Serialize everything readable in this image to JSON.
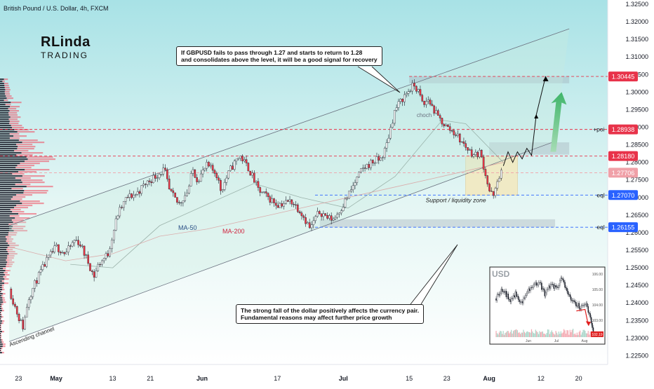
{
  "chart_data": {
    "type": "candlestick",
    "title": "British Pound / U.S. Dollar, 4h, FXCM",
    "brand": {
      "line1": "RLinda",
      "line2": "TRADING"
    },
    "ylim": [
      1.2225,
      1.3262
    ],
    "y_ticks": [
      1.225,
      1.23,
      1.235,
      1.24,
      1.245,
      1.25,
      1.255,
      1.26,
      1.265,
      1.27,
      1.275,
      1.28,
      1.285,
      1.29,
      1.295,
      1.3,
      1.305,
      1.31,
      1.315,
      1.32,
      1.325
    ],
    "y_tick_labels": [
      "1.22500",
      "1.23000",
      "1.23500",
      "1.24000",
      "1.24500",
      "1.25000",
      "1.25500",
      "1.26000",
      "1.26500",
      "1.27000",
      "1.27500",
      "1.28000",
      "1.28500",
      "1.29000",
      "1.29500",
      "1.30000",
      "1.30500",
      "1.31000",
      "1.31500",
      "1.32000",
      "1.32500"
    ],
    "x_ticks": [
      {
        "label": "23",
        "t": 0
      },
      {
        "label": "May",
        "t": 8
      },
      {
        "label": "13",
        "t": 20
      },
      {
        "label": "21",
        "t": 28
      },
      {
        "label": "Jun",
        "t": 39
      },
      {
        "label": "17",
        "t": 55
      },
      {
        "label": "Jul",
        "t": 69
      },
      {
        "label": "15",
        "t": 83
      },
      {
        "label": "23",
        "t": 91
      },
      {
        "label": "Aug",
        "t": 100
      },
      {
        "label": "12",
        "t": 111
      },
      {
        "label": "20",
        "t": 119
      }
    ],
    "t_range": [
      -2,
      121
    ],
    "price_path": [
      [
        -2,
        1.244
      ],
      [
        0,
        1.236
      ],
      [
        1,
        1.233
      ],
      [
        2,
        1.241
      ],
      [
        4,
        1.247
      ],
      [
        6,
        1.252
      ],
      [
        8,
        1.256
      ],
      [
        10,
        1.254
      ],
      [
        12,
        1.258
      ],
      [
        13,
        1.257
      ],
      [
        15,
        1.251
      ],
      [
        16,
        1.2475
      ],
      [
        17,
        1.251
      ],
      [
        19,
        1.254
      ],
      [
        21,
        1.265
      ],
      [
        23,
        1.27
      ],
      [
        25,
        1.271
      ],
      [
        27,
        1.274
      ],
      [
        29,
        1.276
      ],
      [
        31,
        1.278
      ],
      [
        32,
        1.272
      ],
      [
        34,
        1.268
      ],
      [
        36,
        1.272
      ],
      [
        37,
        1.278
      ],
      [
        38,
        1.275
      ],
      [
        40,
        1.279
      ],
      [
        42,
        1.277
      ],
      [
        43,
        1.272
      ],
      [
        45,
        1.278
      ],
      [
        47,
        1.282
      ],
      [
        49,
        1.278
      ],
      [
        51,
        1.272
      ],
      [
        53,
        1.27
      ],
      [
        55,
        1.268
      ],
      [
        58,
        1.269
      ],
      [
        60,
        1.266
      ],
      [
        62,
        1.261
      ],
      [
        63,
        1.264
      ],
      [
        64,
        1.266
      ],
      [
        66,
        1.264
      ],
      [
        67,
        1.264
      ],
      [
        69,
        1.268
      ],
      [
        71,
        1.273
      ],
      [
        73,
        1.278
      ],
      [
        75,
        1.28
      ],
      [
        77,
        1.281
      ],
      [
        78,
        1.284
      ],
      [
        80,
        1.295
      ],
      [
        82,
        1.299
      ],
      [
        84,
        1.302
      ],
      [
        85,
        1.3
      ],
      [
        86,
        1.296
      ],
      [
        87,
        1.298
      ],
      [
        89,
        1.293
      ],
      [
        91,
        1.29
      ],
      [
        93,
        1.288
      ],
      [
        94,
        1.286
      ],
      [
        96,
        1.283
      ],
      [
        97,
        1.282
      ],
      [
        98,
        1.283
      ],
      [
        99,
        1.278
      ],
      [
        100,
        1.272
      ],
      [
        101,
        1.27
      ],
      [
        102,
        1.276
      ],
      [
        103,
        1.278
      ]
    ],
    "ma50": [
      [
        11,
        1.251
      ],
      [
        20,
        1.25
      ],
      [
        30,
        1.262
      ],
      [
        40,
        1.268
      ],
      [
        50,
        1.274
      ],
      [
        60,
        1.27
      ],
      [
        70,
        1.267
      ],
      [
        80,
        1.276
      ],
      [
        90,
        1.292
      ],
      [
        95,
        1.291
      ],
      [
        103,
        1.28
      ]
    ],
    "ma200": [
      [
        -2,
        1.256
      ],
      [
        10,
        1.252
      ],
      [
        20,
        1.254
      ],
      [
        30,
        1.259
      ],
      [
        40,
        1.261
      ],
      [
        50,
        1.264
      ],
      [
        60,
        1.267
      ],
      [
        70,
        1.27
      ],
      [
        80,
        1.273
      ],
      [
        90,
        1.276
      ],
      [
        103,
        1.28
      ]
    ],
    "ma_labels": [
      "MA-50",
      "MA-200"
    ],
    "channel": {
      "upper": [
        [
          -2,
          1.262
        ],
        [
          117,
          1.318
        ]
      ],
      "lower": [
        [
          -2,
          1.229
        ],
        [
          114,
          1.286
        ]
      ],
      "label": "Ascending channel"
    },
    "levels": [
      {
        "price": 1.30445,
        "label": "1.30445",
        "side": "",
        "color": "#e8334a"
      },
      {
        "price": 1.28938,
        "label": "1.28938",
        "side": "+poi",
        "color": "#e8334a"
      },
      {
        "price": 1.2818,
        "label": "1.28180",
        "side": "",
        "color": "#e8334a"
      },
      {
        "price": 1.27706,
        "label": "1.27706",
        "side": "",
        "color": "#f0a0a8"
      },
      {
        "price": 1.2707,
        "label": "1.27070",
        "side": "eql",
        "color": "#2962ff"
      },
      {
        "price": 1.26155,
        "label": "1.26155",
        "side": "eql",
        "color": "#2962ff"
      }
    ],
    "zones": [
      {
        "t0": 83,
        "t1": 117,
        "p0": 1.3025,
        "p1": 1.3045
      },
      {
        "t0": 100,
        "t1": 117,
        "p0": 1.2822,
        "p1": 1.2857
      },
      {
        "t0": 64,
        "t1": 114,
        "p0": 1.2615,
        "p1": 1.2638
      }
    ],
    "support_zone": {
      "t0": 95,
      "t1": 106,
      "p0": 1.2707,
      "p1": 1.2818,
      "label": "Support / liquidity zone"
    },
    "choch_label": "choch",
    "forecast_path": [
      [
        103,
        1.279
      ],
      [
        104,
        1.283
      ],
      [
        105,
        1.28
      ],
      [
        106,
        1.283
      ],
      [
        107,
        1.281
      ],
      [
        108,
        1.284
      ],
      [
        109,
        1.282
      ],
      [
        110,
        1.2935
      ],
      [
        112,
        1.3045
      ]
    ],
    "annotations": [
      "If GBPUSD fails to pass through 1.27 and starts to return to 1.28",
      "and consolidates above the level, it will be a good signal for recovery",
      "The strong fall of the dollar positively affects the currency pair.",
      "Fundamental reasons may affect further price growth"
    ],
    "inset": {
      "title": "USD",
      "y_ticks": [
        "106.00",
        "105.00",
        "104.00",
        "103.00",
        "102.00"
      ],
      "x_ticks": [
        "Jun",
        "Jul",
        "Aug"
      ],
      "last_label": "102.19"
    }
  }
}
